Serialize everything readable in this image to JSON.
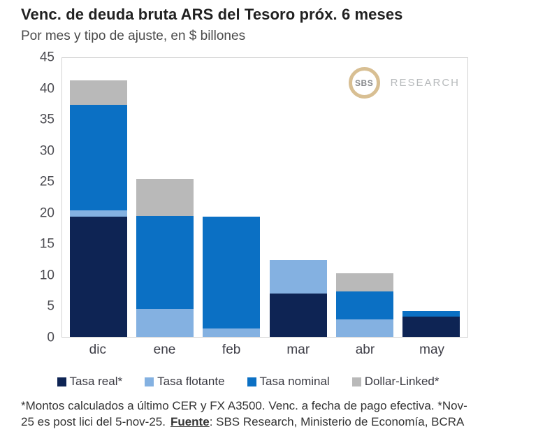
{
  "title": "Venc. de deuda bruta ARS del Tesoro próx. 6 meses",
  "subtitle": "Por mes y tipo de ajuste, en $ billones",
  "logo": {
    "circle_text": "SBS",
    "side_text": "RESEARCH",
    "ring_color": "#d8bf93"
  },
  "chart_data": {
    "type": "bar",
    "stacked": true,
    "title": "Venc. de deuda bruta ARS del Tesoro próx. 6 meses",
    "subtitle": "Por mes y tipo de ajuste, en $ billones",
    "unit": "$ billones",
    "categories": [
      "dic",
      "ene",
      "feb",
      "mar",
      "abr",
      "may"
    ],
    "series": [
      {
        "name": "Tasa real*",
        "color": "#0e2454",
        "values": [
          19.4,
          0,
          0,
          7.0,
          0,
          3.3
        ]
      },
      {
        "name": "Tasa flotante",
        "color": "#84b1e1",
        "values": [
          1.0,
          4.5,
          1.4,
          5.4,
          2.8,
          0.0
        ]
      },
      {
        "name": "Tasa nominal",
        "color": "#0b70c4",
        "values": [
          17.1,
          15.0,
          18.0,
          0,
          4.5,
          0.9
        ]
      },
      {
        "name": "Dollar-Linked*",
        "color": "#b9b9b9",
        "values": [
          3.9,
          6.0,
          0,
          0,
          3.0,
          0.0
        ]
      }
    ],
    "totals": [
      41.4,
      25.5,
      19.4,
      12.4,
      10.3,
      4.2
    ],
    "ylim": [
      0,
      45
    ],
    "yticks": [
      0,
      5,
      10,
      15,
      20,
      25,
      30,
      35,
      40,
      45
    ],
    "grid": false,
    "legend_position": "bottom"
  },
  "footnote": {
    "line1": "*Montos calculados a último CER y FX A3500. Venc. a fecha de pago efectiva. *Nov-",
    "line2_pre": "25 es post lici del 5-nov-25.",
    "source_label": "Fuente",
    "line2_post": ": SBS Research, Ministerio de Economía, BCRA"
  }
}
